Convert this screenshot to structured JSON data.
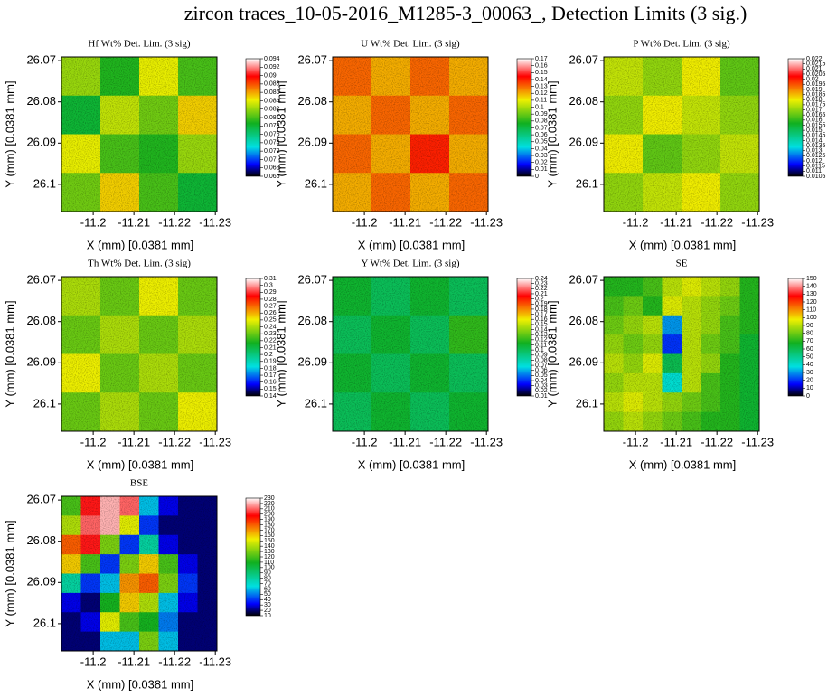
{
  "title": "zircon traces_10-05-2016_M1285-3_00063_, Detection Limits (3 sig.)",
  "chart_data": [
    {
      "type": "heatmap",
      "title": "Hf Wt% Det. Lim. (3 sig)",
      "xlabel": "X (mm)   [0.0381 mm]",
      "ylabel": "Y (mm)   [0.0381 mm]",
      "xlim": [
        -11.1922,
        -11.2304
      ],
      "xticks": [
        -11.2,
        -11.21,
        -11.22,
        -11.23
      ],
      "ylim": [
        26.0691,
        26.1066
      ],
      "yticks": [
        26.07,
        26.08,
        26.09,
        26.1
      ],
      "cblim": [
        0.066,
        0.094
      ],
      "cbticks": [
        0.094,
        0.092,
        0.09,
        0.088,
        0.086,
        0.084,
        0.082,
        0.08,
        0.078,
        0.076,
        0.074,
        0.072,
        0.07,
        0.068,
        0.066
      ],
      "z": [
        [
          0.082,
          0.079,
          0.084,
          0.08
        ],
        [
          0.078,
          0.083,
          0.081,
          0.085
        ],
        [
          0.084,
          0.08,
          0.079,
          0.082
        ],
        [
          0.081,
          0.085,
          0.08,
          0.078
        ]
      ]
    },
    {
      "type": "heatmap",
      "title": "U Wt% Det. Lim. (3 sig)",
      "xlabel": "X (mm)   [0.0381 mm]",
      "ylabel": "Y (mm)   [0.0381 mm]",
      "xlim": [
        -11.1922,
        -11.2304
      ],
      "xticks": [
        -11.2,
        -11.21,
        -11.22,
        -11.23
      ],
      "ylim": [
        26.0691,
        26.1066
      ],
      "yticks": [
        26.07,
        26.08,
        26.09,
        26.1
      ],
      "cblim": [
        0,
        0.17
      ],
      "cbticks": [
        0.17,
        0.16,
        0.15,
        0.14,
        0.13,
        0.12,
        0.11,
        0.1,
        0.09,
        0.08,
        0.07,
        0.06,
        0.05,
        0.04,
        0.03,
        0.02,
        0.01,
        0
      ],
      "z": [
        [
          0.13,
          0.12,
          0.13,
          0.12
        ],
        [
          0.12,
          0.13,
          0.12,
          0.13
        ],
        [
          0.13,
          0.12,
          0.14,
          0.12
        ],
        [
          0.12,
          0.13,
          0.12,
          0.13
        ]
      ]
    },
    {
      "type": "heatmap",
      "title": "P Wt% Det. Lim. (3 sig)",
      "xlabel": "X (mm)   [0.0381 mm]",
      "ylabel": "Y (mm)   [0.0381 mm]",
      "xlim": [
        -11.1922,
        -11.2304
      ],
      "xticks": [
        -11.2,
        -11.21,
        -11.22,
        -11.23
      ],
      "ylim": [
        26.0691,
        26.1066
      ],
      "yticks": [
        26.07,
        26.08,
        26.09,
        26.1
      ],
      "cblim": [
        0.0105,
        0.022
      ],
      "cbticks": [
        0.022,
        0.0215,
        0.021,
        0.0205,
        0.02,
        0.0195,
        0.019,
        0.0185,
        0.018,
        0.0175,
        0.017,
        0.0165,
        0.016,
        0.0155,
        0.015,
        0.0145,
        0.014,
        0.0135,
        0.013,
        0.0125,
        0.012,
        0.0115,
        0.011,
        0.0105
      ],
      "z": [
        [
          0.0175,
          0.017,
          0.018,
          0.0165
        ],
        [
          0.017,
          0.018,
          0.0175,
          0.017
        ],
        [
          0.018,
          0.0165,
          0.017,
          0.0175
        ],
        [
          0.017,
          0.0175,
          0.018,
          0.017
        ]
      ]
    },
    {
      "type": "heatmap",
      "title": "Th Wt% Det. Lim. (3 sig)",
      "xlabel": "X (mm)   [0.0381 mm]",
      "ylabel": "Y (mm)   [0.0381 mm]",
      "xlim": [
        -11.1922,
        -11.2304
      ],
      "xticks": [
        -11.2,
        -11.21,
        -11.22,
        -11.23
      ],
      "ylim": [
        26.0691,
        26.1066
      ],
      "yticks": [
        26.07,
        26.08,
        26.09,
        26.1
      ],
      "cblim": [
        0.14,
        0.31
      ],
      "cbticks": [
        0.31,
        0.3,
        0.29,
        0.28,
        0.27,
        0.26,
        0.25,
        0.24,
        0.23,
        0.22,
        0.21,
        0.2,
        0.19,
        0.18,
        0.17,
        0.16,
        0.15,
        0.14
      ],
      "z": [
        [
          0.24,
          0.23,
          0.25,
          0.23
        ],
        [
          0.23,
          0.24,
          0.23,
          0.24
        ],
        [
          0.25,
          0.23,
          0.24,
          0.23
        ],
        [
          0.23,
          0.24,
          0.23,
          0.25
        ]
      ]
    },
    {
      "type": "heatmap",
      "title": "Y Wt% Det. Lim. (3 sig)",
      "xlabel": "X (mm)   [0.0381 mm]",
      "ylabel": "Y (mm)   [0.0381 mm]",
      "xlim": [
        -11.1922,
        -11.2304
      ],
      "xticks": [
        -11.2,
        -11.21,
        -11.22,
        -11.23
      ],
      "ylim": [
        26.0691,
        26.1066
      ],
      "yticks": [
        26.07,
        26.08,
        26.09,
        26.1
      ],
      "cblim": [
        0.01,
        0.24
      ],
      "cbticks": [
        0.24,
        0.23,
        0.22,
        0.21,
        0.2,
        0.19,
        0.18,
        0.17,
        0.16,
        0.15,
        0.14,
        0.13,
        0.12,
        0.11,
        0.1,
        0.09,
        0.08,
        0.07,
        0.06,
        0.05,
        0.04,
        0.03,
        0.02,
        0.01
      ],
      "z": [
        [
          0.11,
          0.1,
          0.11,
          0.1
        ],
        [
          0.1,
          0.11,
          0.1,
          0.12
        ],
        [
          0.11,
          0.1,
          0.11,
          0.1
        ],
        [
          0.1,
          0.11,
          0.1,
          0.11
        ]
      ]
    },
    {
      "type": "heatmap",
      "title": "SE",
      "xlabel": "X (mm)   [0.0381 mm]",
      "ylabel": "Y (mm)   [0.0381 mm]",
      "xlim": [
        -11.1922,
        -11.2304
      ],
      "xticks": [
        -11.2,
        -11.21,
        -11.22,
        -11.23
      ],
      "ylim": [
        26.0691,
        26.1066
      ],
      "yticks": [
        26.07,
        26.08,
        26.09,
        26.1
      ],
      "cblim": [
        0,
        150
      ],
      "cbticks": [
        150,
        140,
        130,
        120,
        110,
        100,
        90,
        80,
        70,
        60,
        50,
        40,
        30,
        20,
        10,
        0
      ],
      "z": [
        [
          70,
          70,
          75,
          90,
          95,
          90,
          85,
          70
        ],
        [
          75,
          80,
          70,
          95,
          90,
          85,
          80,
          70
        ],
        [
          80,
          85,
          90,
          30,
          90,
          85,
          75,
          70
        ],
        [
          85,
          80,
          85,
          20,
          90,
          80,
          75,
          65
        ],
        [
          90,
          85,
          95,
          60,
          90,
          85,
          70,
          65
        ],
        [
          85,
          90,
          90,
          40,
          90,
          75,
          70,
          65
        ],
        [
          90,
          95,
          90,
          85,
          80,
          75,
          70,
          65
        ],
        [
          85,
          90,
          85,
          80,
          75,
          70,
          70,
          65
        ]
      ]
    },
    {
      "type": "heatmap",
      "title": "BSE",
      "xlabel": "X (mm)   [0.0381 mm]",
      "ylabel": "Y (mm)   [0.0381 mm]",
      "xlim": [
        -11.1922,
        -11.2304
      ],
      "xticks": [
        -11.2,
        -11.21,
        -11.22,
        -11.23
      ],
      "ylim": [
        26.0691,
        26.1066
      ],
      "yticks": [
        26.07,
        26.08,
        26.09,
        26.1
      ],
      "cblim": [
        10,
        230
      ],
      "cbticks": [
        230,
        220,
        210,
        200,
        190,
        180,
        170,
        160,
        150,
        140,
        130,
        120,
        110,
        100,
        90,
        80,
        70,
        60,
        50,
        40,
        30,
        20,
        10
      ],
      "z": [
        [
          120,
          200,
          220,
          210,
          60,
          30,
          20,
          20
        ],
        [
          140,
          210,
          220,
          150,
          40,
          20,
          20,
          20
        ],
        [
          180,
          200,
          130,
          40,
          80,
          30,
          20,
          20
        ],
        [
          160,
          120,
          40,
          130,
          160,
          120,
          30,
          20
        ],
        [
          80,
          40,
          60,
          170,
          180,
          130,
          40,
          20
        ],
        [
          30,
          20,
          110,
          160,
          140,
          60,
          30,
          20
        ],
        [
          20,
          30,
          150,
          120,
          110,
          50,
          20,
          20
        ],
        [
          20,
          20,
          60,
          60,
          130,
          60,
          20,
          20
        ]
      ]
    }
  ]
}
